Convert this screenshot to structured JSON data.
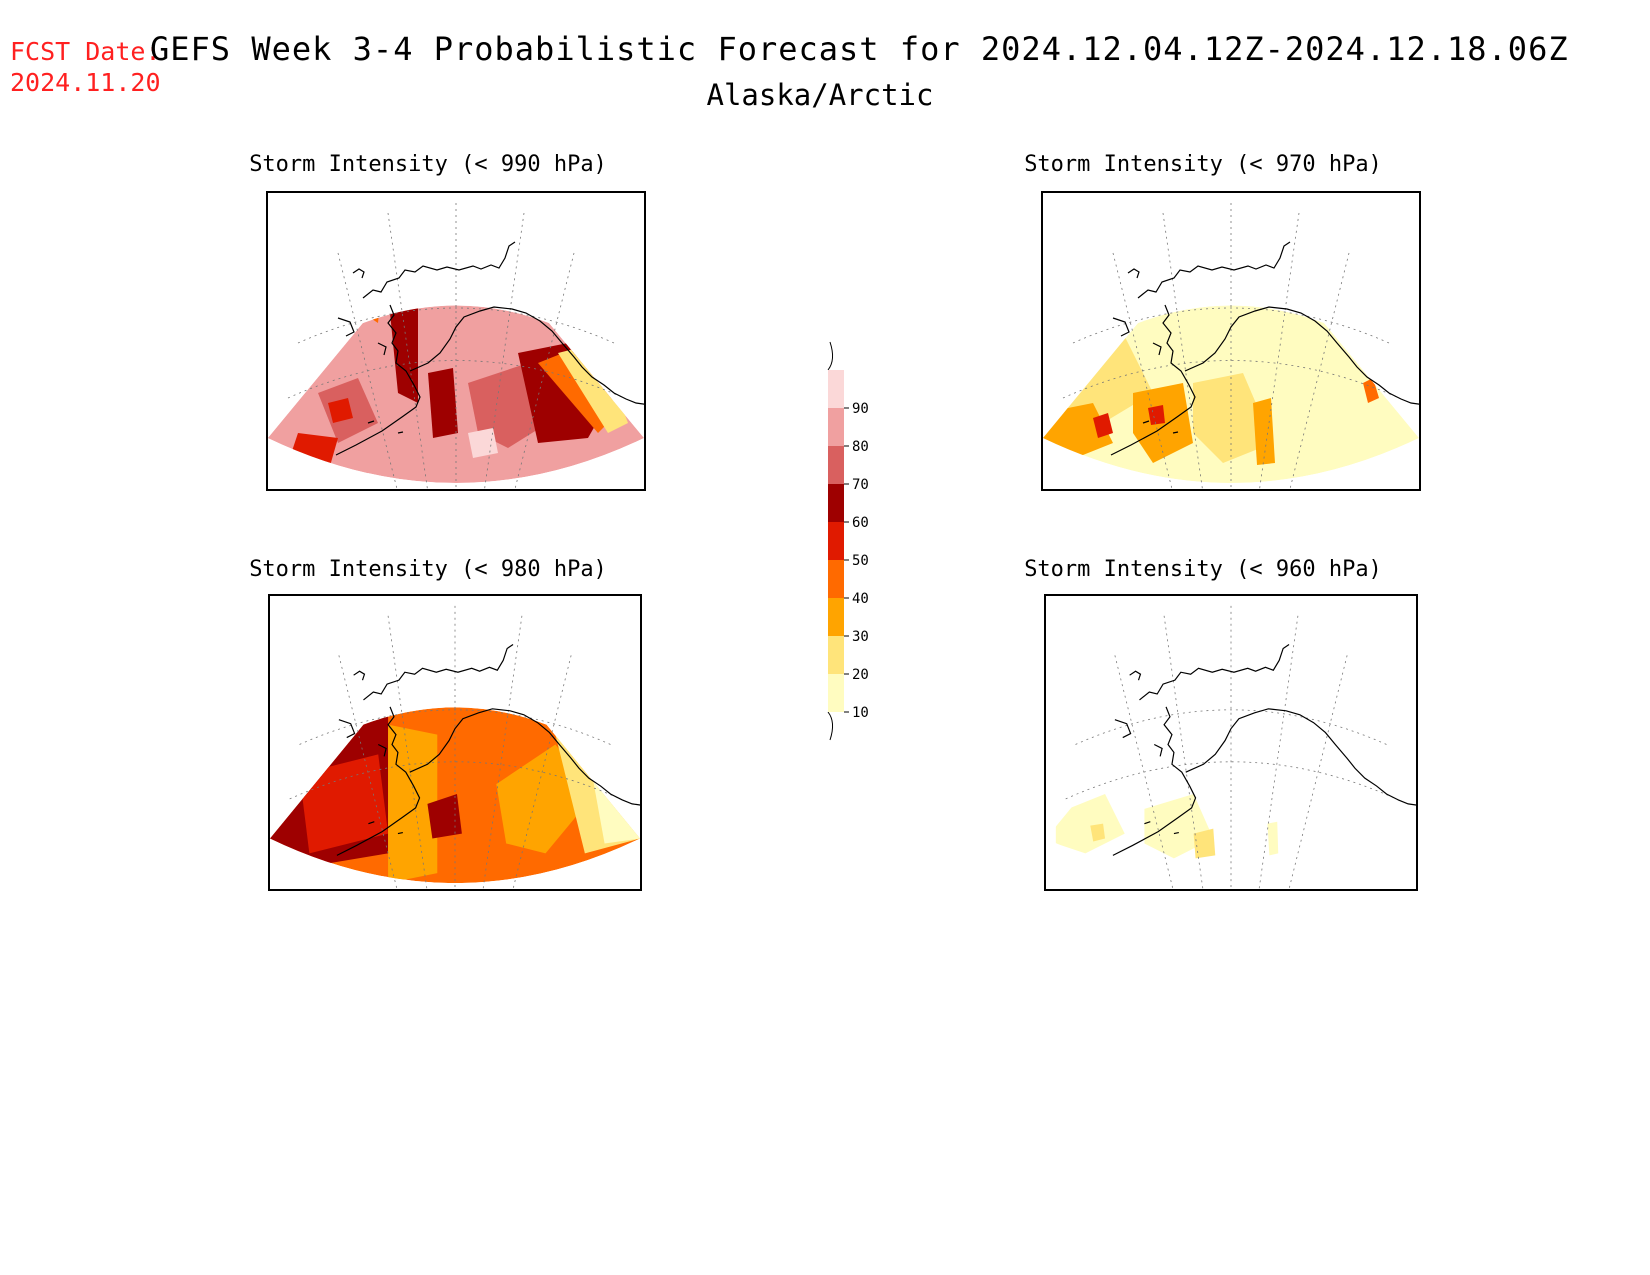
{
  "header": {
    "fcst_label": "FCST Date:",
    "fcst_date": "2024.11.20",
    "title": "GEFS Week 3-4 Probabilistic Forecast for 2024.12.04.12Z-2024.12.18.06Z",
    "subtitle": "Alaska/Arctic"
  },
  "panels": [
    {
      "title": "Storm Intensity (< 990 hPa)",
      "intensity": "high"
    },
    {
      "title": "Storm Intensity (< 970 hPa)",
      "intensity": "low"
    },
    {
      "title": "Storm Intensity (< 980 hPa)",
      "intensity": "medium"
    },
    {
      "title": "Storm Intensity (< 960 hPa)",
      "intensity": "minimal"
    }
  ],
  "colorbar": {
    "levels": [
      "10",
      "20",
      "30",
      "40",
      "50",
      "60",
      "70",
      "80",
      "90"
    ],
    "colors": [
      "#fffcc0",
      "#ffe47a",
      "#ffa400",
      "#ff6a00",
      "#e01a00",
      "#9e0000",
      "#d9605f",
      "#f0a0a0",
      "#fbd8d8"
    ]
  }
}
